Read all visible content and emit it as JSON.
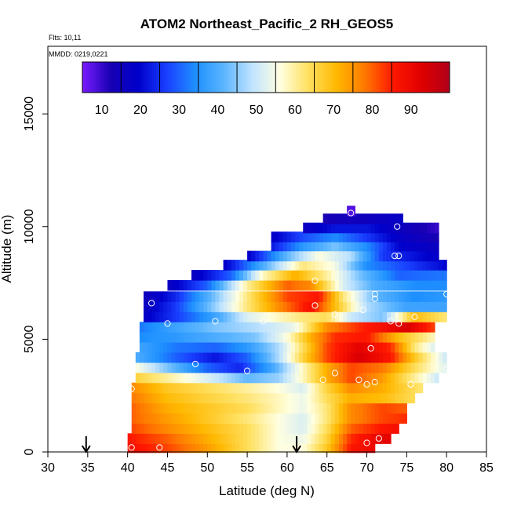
{
  "chart_data": {
    "type": "heatmap",
    "title": "ATOM2 Northeast_Pacific_2 RH_GEOS5",
    "subtitle_flights": "Flts: 10,11",
    "subtitle_dates": "MMDD: 0219,0221",
    "xlabel": "Latitude (deg N)",
    "ylabel": "Altitude (m)",
    "xlim": [
      30,
      85
    ],
    "ylim": [
      0,
      18000
    ],
    "x_ticks": [
      "30",
      "35",
      "40",
      "45",
      "50",
      "55",
      "60",
      "65",
      "70",
      "75",
      "80",
      "85"
    ],
    "y_ticks": [
      "0",
      "5000",
      "10000",
      "15000"
    ],
    "colorbar": {
      "range": [
        5,
        100
      ],
      "ticks": [
        "10",
        "20",
        "30",
        "40",
        "50",
        "60",
        "70",
        "80",
        "90"
      ],
      "stops": [
        "#7a1cff",
        "#1800b4",
        "#0000cc",
        "#1a40ff",
        "#1e90ff",
        "#5ab4ff",
        "#bfe3ff",
        "#ffffe0",
        "#ffe060",
        "#ffb800",
        "#ff7800",
        "#ff1800",
        "#e00000",
        "#b00018"
      ]
    },
    "rows": [
      {
        "alt": 10700,
        "lat": [
          67.5,
          68.5
        ],
        "v": [
          [
            67.5,
            8
          ],
          [
            68.5,
            8
          ]
        ]
      },
      {
        "alt": 10350,
        "lat": [
          64.5,
          74.5
        ],
        "v": [
          [
            64.5,
            12
          ],
          [
            67,
            14
          ],
          [
            70,
            15
          ],
          [
            74.5,
            18
          ]
        ]
      },
      {
        "alt": 9950,
        "lat": [
          62,
          79
        ],
        "v": [
          [
            62,
            16
          ],
          [
            66,
            22
          ],
          [
            70,
            22
          ],
          [
            74,
            16
          ],
          [
            79,
            10
          ]
        ]
      },
      {
        "alt": 9550,
        "lat": [
          58,
          79
        ],
        "v": [
          [
            58,
            18
          ],
          [
            62,
            28
          ],
          [
            66,
            34
          ],
          [
            70,
            26
          ],
          [
            74,
            18
          ],
          [
            79,
            12
          ]
        ]
      },
      {
        "alt": 9150,
        "lat": [
          58,
          79
        ],
        "v": [
          [
            58,
            22
          ],
          [
            62,
            36
          ],
          [
            66,
            44
          ],
          [
            70,
            34
          ],
          [
            74,
            20
          ],
          [
            79,
            16
          ]
        ]
      },
      {
        "alt": 8700,
        "lat": [
          55,
          79
        ],
        "v": [
          [
            55,
            18
          ],
          [
            60,
            42
          ],
          [
            64,
            56
          ],
          [
            68,
            48
          ],
          [
            72,
            26
          ],
          [
            79,
            18
          ]
        ]
      },
      {
        "alt": 8300,
        "lat": [
          52,
          80
        ],
        "v": [
          [
            52,
            18
          ],
          [
            57,
            40
          ],
          [
            62,
            62
          ],
          [
            66,
            55
          ],
          [
            70,
            34
          ],
          [
            80,
            20
          ]
        ]
      },
      {
        "alt": 7850,
        "lat": [
          48,
          80
        ],
        "v": [
          [
            48,
            16
          ],
          [
            53,
            30
          ],
          [
            57,
            58
          ],
          [
            61,
            72
          ],
          [
            65,
            60
          ],
          [
            69,
            44
          ],
          [
            74,
            30
          ],
          [
            80,
            32
          ]
        ]
      },
      {
        "alt": 7400,
        "lat": [
          45,
          80
        ],
        "v": [
          [
            45,
            16
          ],
          [
            50,
            30
          ],
          [
            55,
            60
          ],
          [
            60,
            80
          ],
          [
            63,
            76
          ],
          [
            67,
            52
          ],
          [
            71,
            40
          ],
          [
            76,
            34
          ],
          [
            80,
            34
          ]
        ]
      },
      {
        "alt": 6900,
        "lat": [
          42,
          80
        ],
        "v": [
          [
            42,
            14
          ],
          [
            46,
            24
          ],
          [
            51,
            44
          ],
          [
            56,
            66
          ],
          [
            60,
            82
          ],
          [
            64,
            86
          ],
          [
            67,
            62
          ],
          [
            71,
            42
          ],
          [
            76,
            34
          ],
          [
            80,
            36
          ]
        ]
      },
      {
        "alt": 6450,
        "lat": [
          42,
          80
        ],
        "v": [
          [
            42,
            16
          ],
          [
            46,
            26
          ],
          [
            51,
            46
          ],
          [
            55,
            62
          ],
          [
            59,
            76
          ],
          [
            63,
            88
          ],
          [
            66,
            70
          ],
          [
            70,
            48
          ],
          [
            75,
            38
          ],
          [
            80,
            38
          ]
        ]
      },
      {
        "alt": 6000,
        "lat": [
          42,
          80
        ],
        "v": [
          [
            42,
            18
          ],
          [
            46,
            26
          ],
          [
            51,
            38
          ],
          [
            55,
            52
          ],
          [
            59,
            58
          ],
          [
            62,
            62
          ],
          [
            65,
            64
          ],
          [
            68,
            50
          ],
          [
            72,
            44
          ],
          [
            76,
            70
          ],
          [
            80,
            62
          ]
        ]
      },
      {
        "alt": 5550,
        "lat": [
          41.5,
          78.5
        ],
        "v": [
          [
            41.5,
            32
          ],
          [
            46,
            38
          ],
          [
            51,
            44
          ],
          [
            56,
            48
          ],
          [
            61,
            54
          ],
          [
            65,
            76
          ],
          [
            69,
            84
          ],
          [
            72,
            88
          ],
          [
            75,
            94
          ],
          [
            78.5,
            82
          ]
        ]
      },
      {
        "alt": 5100,
        "lat": [
          41.5,
          78.5
        ],
        "v": [
          [
            41.5,
            34
          ],
          [
            46,
            36
          ],
          [
            51,
            40
          ],
          [
            56,
            44
          ],
          [
            60,
            56
          ],
          [
            63,
            72
          ],
          [
            66,
            84
          ],
          [
            70,
            86
          ],
          [
            74,
            70
          ],
          [
            78.5,
            58
          ]
        ]
      },
      {
        "alt": 4650,
        "lat": [
          41.5,
          78.5
        ],
        "v": [
          [
            41.5,
            38
          ],
          [
            46,
            32
          ],
          [
            51,
            30
          ],
          [
            55,
            36
          ],
          [
            59,
            48
          ],
          [
            62,
            64
          ],
          [
            65,
            82
          ],
          [
            69,
            92
          ],
          [
            73,
            84
          ],
          [
            76,
            62
          ],
          [
            78.5,
            52
          ]
        ]
      },
      {
        "alt": 4200,
        "lat": [
          41,
          80
        ],
        "v": [
          [
            41,
            40
          ],
          [
            46,
            30
          ],
          [
            51,
            22
          ],
          [
            55,
            30
          ],
          [
            59,
            48
          ],
          [
            62,
            66
          ],
          [
            65,
            82
          ],
          [
            69,
            94
          ],
          [
            73,
            86
          ],
          [
            76,
            68
          ],
          [
            80,
            50
          ]
        ]
      },
      {
        "alt": 3750,
        "lat": [
          41,
          80
        ],
        "v": [
          [
            41,
            56
          ],
          [
            45,
            44
          ],
          [
            50,
            30
          ],
          [
            54,
            24
          ],
          [
            58,
            38
          ],
          [
            62,
            58
          ],
          [
            65,
            72
          ],
          [
            68,
            82
          ],
          [
            72,
            78
          ],
          [
            76,
            64
          ],
          [
            80,
            52
          ]
        ]
      },
      {
        "alt": 3300,
        "lat": [
          41,
          79
        ],
        "v": [
          [
            41,
            66
          ],
          [
            45,
            60
          ],
          [
            50,
            52
          ],
          [
            55,
            42
          ],
          [
            59,
            46
          ],
          [
            62,
            58
          ],
          [
            65,
            72
          ],
          [
            68,
            82
          ],
          [
            72,
            74
          ],
          [
            76,
            60
          ],
          [
            79,
            50
          ]
        ]
      },
      {
        "alt": 2850,
        "lat": [
          40.5,
          77
        ],
        "v": [
          [
            40.5,
            76
          ],
          [
            45,
            68
          ],
          [
            50,
            64
          ],
          [
            55,
            60
          ],
          [
            59,
            56
          ],
          [
            62,
            52
          ],
          [
            65,
            66
          ],
          [
            68,
            76
          ],
          [
            72,
            72
          ],
          [
            77,
            62
          ]
        ]
      },
      {
        "alt": 2400,
        "lat": [
          40.5,
          76
        ],
        "v": [
          [
            40.5,
            78
          ],
          [
            45,
            70
          ],
          [
            50,
            66
          ],
          [
            55,
            62
          ],
          [
            59,
            58
          ],
          [
            62,
            54
          ],
          [
            65,
            64
          ],
          [
            68,
            72
          ],
          [
            72,
            70
          ],
          [
            76,
            64
          ]
        ]
      },
      {
        "alt": 1950,
        "lat": [
          40.5,
          75
        ],
        "v": [
          [
            40.5,
            80
          ],
          [
            45,
            72
          ],
          [
            50,
            68
          ],
          [
            55,
            64
          ],
          [
            59,
            58
          ],
          [
            62,
            54
          ],
          [
            65,
            62
          ],
          [
            68,
            76
          ],
          [
            72,
            82
          ],
          [
            75,
            80
          ]
        ]
      },
      {
        "alt": 1500,
        "lat": [
          40.5,
          75
        ],
        "v": [
          [
            40.5,
            80
          ],
          [
            45,
            74
          ],
          [
            50,
            68
          ],
          [
            55,
            62
          ],
          [
            59,
            56
          ],
          [
            62,
            52
          ],
          [
            65,
            62
          ],
          [
            68,
            76
          ],
          [
            72,
            82
          ],
          [
            75,
            84
          ]
        ]
      },
      {
        "alt": 1050,
        "lat": [
          40.5,
          74
        ],
        "v": [
          [
            40.5,
            82
          ],
          [
            45,
            76
          ],
          [
            50,
            70
          ],
          [
            55,
            64
          ],
          [
            59,
            56
          ],
          [
            62,
            52
          ],
          [
            65,
            64
          ],
          [
            68,
            80
          ],
          [
            72,
            86
          ],
          [
            74,
            88
          ]
        ]
      },
      {
        "alt": 600,
        "lat": [
          40,
          73
        ],
        "v": [
          [
            40,
            86
          ],
          [
            45,
            80
          ],
          [
            50,
            72
          ],
          [
            55,
            64
          ],
          [
            59,
            56
          ],
          [
            62,
            54
          ],
          [
            65,
            66
          ],
          [
            68,
            84
          ],
          [
            71,
            90
          ],
          [
            73,
            92
          ]
        ]
      },
      {
        "alt": 200,
        "lat": [
          40,
          71
        ],
        "v": [
          [
            40,
            88
          ],
          [
            45,
            82
          ],
          [
            50,
            74
          ],
          [
            55,
            64
          ],
          [
            59,
            56
          ],
          [
            62,
            56
          ],
          [
            65,
            68
          ],
          [
            68,
            86
          ],
          [
            71,
            90
          ]
        ]
      }
    ],
    "points": [
      [
        40.5,
        200
      ],
      [
        44,
        200
      ],
      [
        70,
        400
      ],
      [
        71.5,
        600
      ],
      [
        40.5,
        2800
      ],
      [
        64.5,
        3200
      ],
      [
        69,
        3200
      ],
      [
        70,
        3000
      ],
      [
        71,
        3100
      ],
      [
        75.5,
        3000
      ],
      [
        48.5,
        3900
      ],
      [
        55,
        3600
      ],
      [
        66,
        3500
      ],
      [
        80,
        3700
      ],
      [
        70.5,
        4600
      ],
      [
        45,
        5700
      ],
      [
        51,
        5800
      ],
      [
        57,
        5800
      ],
      [
        73,
        5800
      ],
      [
        74,
        5700
      ],
      [
        76,
        6000
      ],
      [
        66,
        6100
      ],
      [
        69.5,
        6300
      ],
      [
        63.5,
        6500
      ],
      [
        43,
        6600
      ],
      [
        71,
        6800
      ],
      [
        71,
        7000
      ],
      [
        80,
        7000
      ],
      [
        63.5,
        7600
      ],
      [
        73.5,
        8700
      ],
      [
        74,
        8700
      ],
      [
        79.5,
        9600
      ],
      [
        73.8,
        10000
      ],
      [
        68,
        10600
      ]
    ],
    "arrows": [
      34.8,
      61.2
    ]
  }
}
